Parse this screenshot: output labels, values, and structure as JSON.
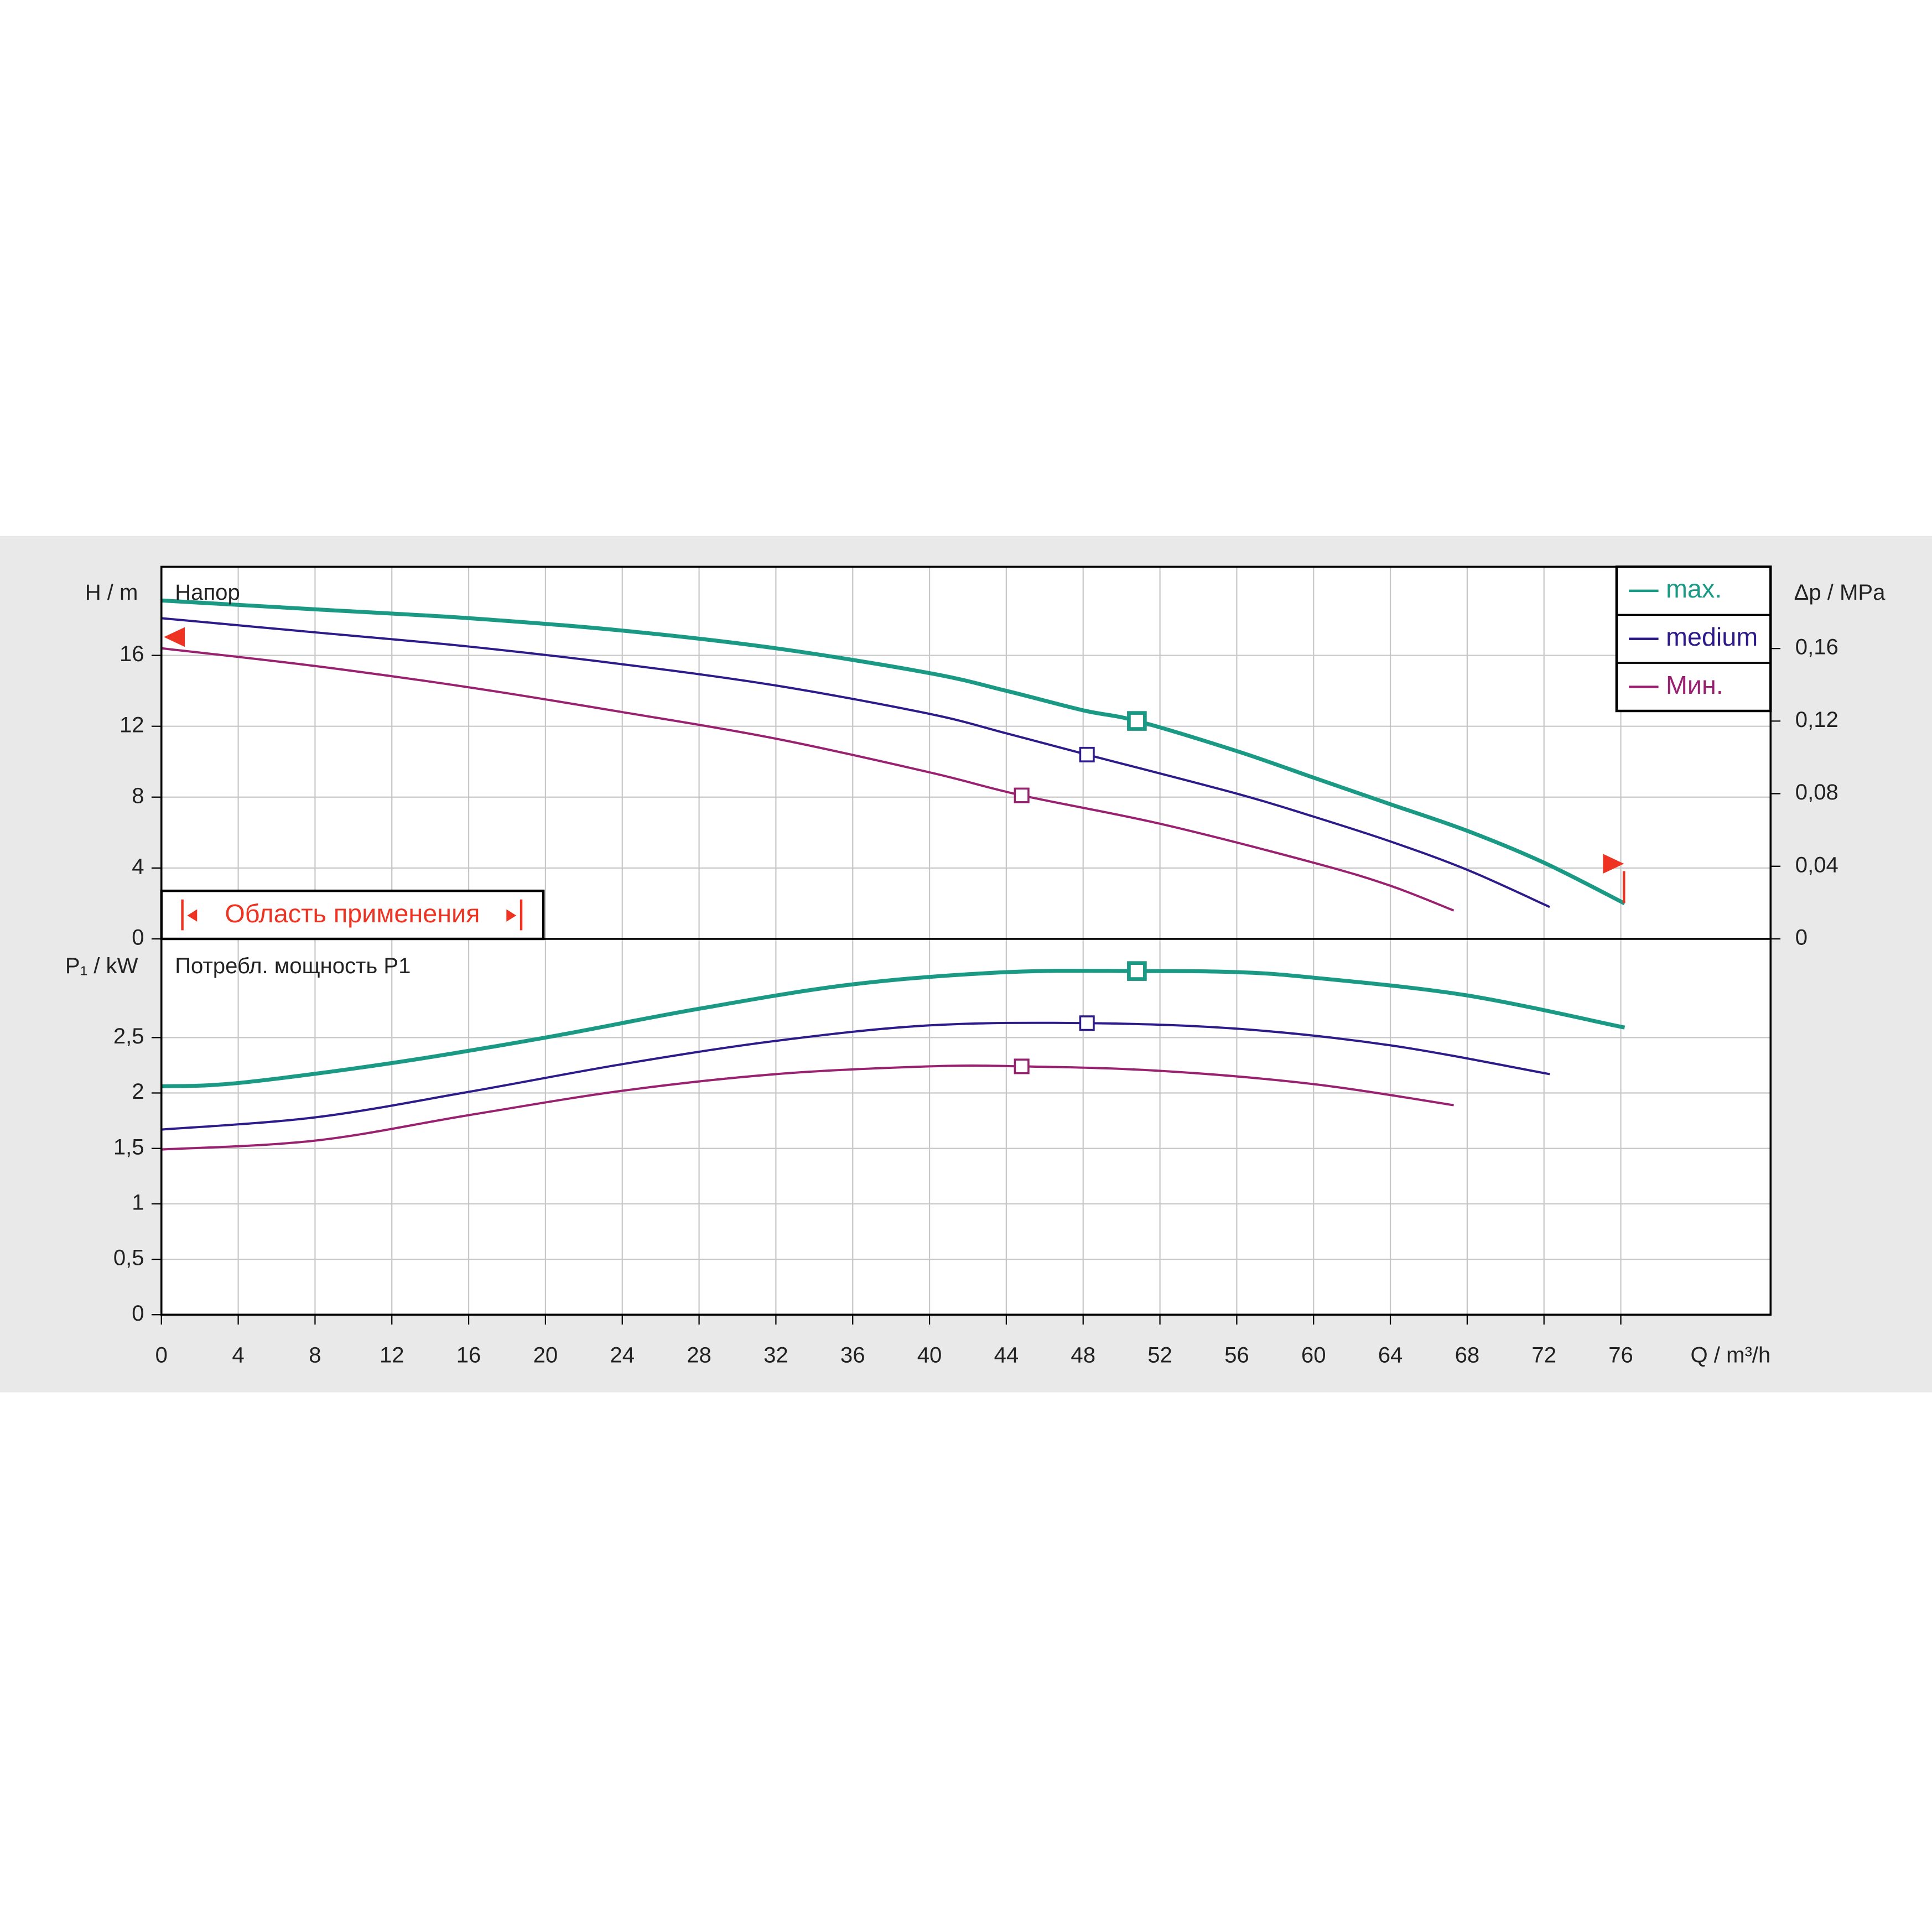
{
  "chart_data": [
    {
      "type": "line",
      "title": "Напор",
      "y_label": "H / m",
      "y2_label": "Δp / MPa",
      "xlim": [
        0,
        83.8
      ],
      "ylim": [
        0,
        21
      ],
      "yticks": [
        0,
        4,
        8,
        12,
        16
      ],
      "y2lim": [
        0,
        0.205
      ],
      "y2ticks": [
        0,
        {
          "value": 0.04,
          "label": "0,04"
        },
        {
          "value": 0.08,
          "label": "0,08"
        },
        {
          "value": 0.12,
          "label": "0,12"
        },
        {
          "value": 0.16,
          "label": "0,16"
        }
      ],
      "grid": true,
      "legend": "top-right",
      "annotation": "Область применения",
      "series": [
        {
          "name": "max.",
          "color": "#1a9a85",
          "x": [
            0,
            8,
            16,
            24,
            32,
            40,
            44,
            48,
            50.8,
            56,
            60,
            64,
            68,
            72,
            76.2
          ],
          "values": [
            19.1,
            18.6,
            18.1,
            17.4,
            16.4,
            15.0,
            14.0,
            12.9,
            12.3,
            10.6,
            9.1,
            7.6,
            6.1,
            4.3,
            2.0
          ],
          "marker": {
            "x": 50.8,
            "y": 12.3
          }
        },
        {
          "name": "medium",
          "color": "#2e1a8a",
          "x": [
            0,
            8,
            16,
            24,
            32,
            40,
            44,
            48.2,
            56,
            60,
            64,
            68,
            72.3
          ],
          "values": [
            18.1,
            17.3,
            16.5,
            15.5,
            14.3,
            12.7,
            11.6,
            10.4,
            8.2,
            6.9,
            5.5,
            3.9,
            1.8
          ],
          "marker": {
            "x": 48.2,
            "y": 10.4
          }
        },
        {
          "name": "Мин.",
          "color": "#9a2070",
          "x": [
            0,
            8,
            16,
            24,
            32,
            40,
            44.8,
            52,
            60,
            64,
            67.3
          ],
          "values": [
            16.4,
            15.4,
            14.2,
            12.8,
            11.3,
            9.4,
            8.1,
            6.5,
            4.3,
            3.0,
            1.6
          ],
          "marker": {
            "x": 44.8,
            "y": 8.1
          }
        }
      ]
    },
    {
      "type": "line",
      "title": "Потребл. мощность P1",
      "y_label": "P₁ / kW",
      "x_label": "Q / m³/h",
      "xlim": [
        0,
        83.8
      ],
      "ylim": [
        0,
        3.39
      ],
      "xticks": [
        0,
        4,
        8,
        12,
        16,
        20,
        24,
        28,
        32,
        36,
        40,
        44,
        48,
        52,
        56,
        60,
        64,
        68,
        72,
        76
      ],
      "yticks": [
        0,
        {
          "value": 0.5,
          "label": "0,5"
        },
        1,
        {
          "value": 1.5,
          "label": "1,5"
        },
        2,
        {
          "value": 2.5,
          "label": "2,5"
        }
      ],
      "grid": true,
      "series": [
        {
          "name": "max.",
          "color": "#1a9a85",
          "x": [
            0,
            4,
            12,
            20,
            28,
            36,
            44,
            50.8,
            56,
            60,
            68,
            76.2
          ],
          "values": [
            2.06,
            2.09,
            2.27,
            2.5,
            2.76,
            2.98,
            3.09,
            3.1,
            3.09,
            3.04,
            2.88,
            2.59
          ],
          "marker": {
            "x": 50.8,
            "y": 3.1
          }
        },
        {
          "name": "medium",
          "color": "#2e1a8a",
          "x": [
            0,
            8,
            16,
            24,
            32,
            40,
            48.2,
            56,
            64,
            72.3
          ],
          "values": [
            1.67,
            1.78,
            2.01,
            2.26,
            2.47,
            2.61,
            2.63,
            2.58,
            2.43,
            2.17
          ],
          "marker": {
            "x": 48.2,
            "y": 2.63
          }
        },
        {
          "name": "Мин.",
          "color": "#9a2070",
          "x": [
            0,
            8,
            16,
            24,
            32,
            40,
            44.8,
            52,
            60,
            67.3
          ],
          "values": [
            1.49,
            1.57,
            1.8,
            2.02,
            2.17,
            2.24,
            2.24,
            2.2,
            2.08,
            1.89
          ],
          "marker": {
            "x": 44.8,
            "y": 2.24
          }
        }
      ]
    }
  ]
}
